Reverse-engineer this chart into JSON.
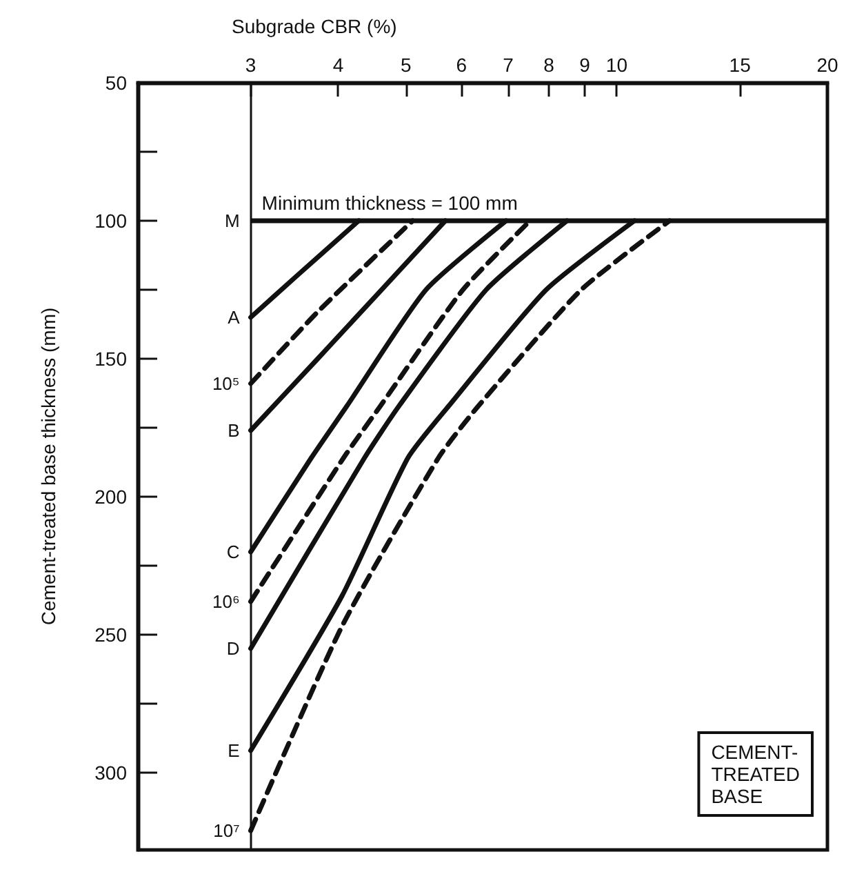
{
  "chart_data": {
    "type": "line",
    "xlabel": "Subgrade CBR (%)",
    "ylabel": "Cement-treated base thickness (mm)",
    "log": "x",
    "xlim": [
      2.07,
      20
    ],
    "xticks": [
      3,
      4,
      5,
      6,
      7,
      8,
      9,
      10,
      15,
      20
    ],
    "ylim": [
      328,
      50
    ],
    "yticks": [
      50,
      {
        "value": 75,
        "label": null
      },
      100,
      {
        "value": 125,
        "label": null
      },
      150,
      {
        "value": 175,
        "label": null
      },
      200,
      {
        "value": 225,
        "label": null
      },
      250,
      {
        "value": 275,
        "label": null
      },
      300
    ],
    "grid": false,
    "legend": false,
    "marker": "none",
    "ref_lines": [
      {
        "axis": "x",
        "value": 3,
        "color": "#111111"
      },
      {
        "axis": "y",
        "value": 100,
        "label": "Minimum thickness = 100 mm",
        "color": "#111111"
      }
    ],
    "annotations": [
      {
        "text": "M",
        "x": 3,
        "y": 100
      },
      "CEMENT-\nTREATED\nBASE"
    ],
    "series": [
      {
        "name": "A",
        "color": "#111111",
        "line_style": "solid",
        "x": [
          3,
          3.49,
          4.28
        ],
        "values": [
          135,
          120,
          100
        ]
      },
      {
        "name": "10⁵",
        "color": "#111111",
        "line_style": "dashed",
        "x": [
          3,
          3.74,
          5.11
        ],
        "values": [
          159,
          133,
          100
        ]
      },
      {
        "name": "B",
        "color": "#111111",
        "line_style": "solid",
        "x": [
          3,
          3.74,
          5.69
        ],
        "values": [
          176,
          150,
          100
        ]
      },
      {
        "name": "C",
        "color": "#111111",
        "line_style": "solid",
        "x": [
          3,
          3.66,
          4.12,
          5.34,
          6.95
        ],
        "values": [
          220,
          186,
          167,
          125,
          100
        ]
      },
      {
        "name": "10⁶",
        "color": "#111111",
        "line_style": "dashed",
        "x": [
          3,
          4.07,
          4.6,
          6.03,
          7.52
        ],
        "values": [
          238,
          186,
          167,
          125,
          100
        ]
      },
      {
        "name": "D",
        "color": "#111111",
        "line_style": "solid",
        "x": [
          3,
          4.36,
          4.89,
          6.51,
          8.49
        ],
        "values": [
          255,
          186,
          167,
          125,
          100
        ]
      },
      {
        "name": "E",
        "color": "#111111",
        "line_style": "solid",
        "x": [
          3,
          4.05,
          5.03,
          5.76,
          7.93,
          10.6
        ],
        "values": [
          292,
          236,
          186,
          167,
          125,
          100
        ]
      },
      {
        "name": "10⁷",
        "color": "#111111",
        "line_style": "dashed",
        "x": [
          3,
          4.05,
          5.56,
          6.35,
          8.9,
          11.9
        ],
        "values": [
          321,
          247,
          186,
          167,
          125,
          100
        ]
      }
    ]
  }
}
